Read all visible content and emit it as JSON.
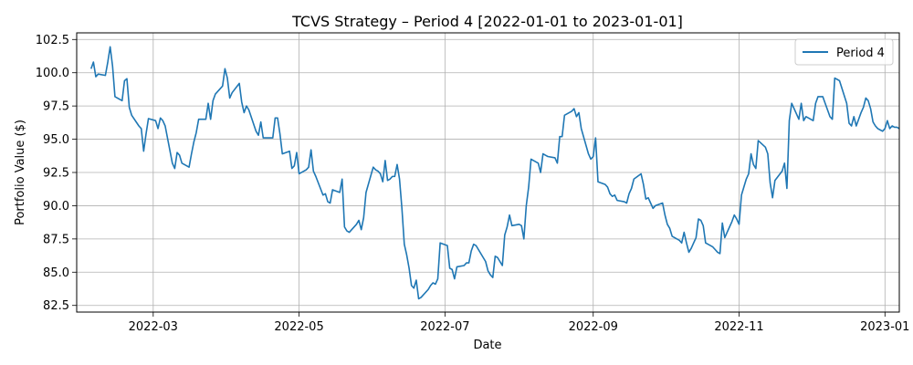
{
  "chart_data": {
    "type": "line",
    "title": "TCVS Strategy – Period 4 [2022-01-01 to 2023-01-01]",
    "xlabel": "Date",
    "ylabel": "Portfolio Value ($)",
    "xlim": [
      "2022-01-28",
      "2023-01-07"
    ],
    "ylim": [
      82.0,
      103.0
    ],
    "x_ticks": [
      "2022-03-01",
      "2022-05-01",
      "2022-07-01",
      "2022-09-01",
      "2022-11-01",
      "2023-01-01"
    ],
    "x_tick_labels": [
      "2022-03",
      "2022-05",
      "2022-07",
      "2022-09",
      "2022-11",
      "2023-01"
    ],
    "y_ticks": [
      82.5,
      85.0,
      87.5,
      90.0,
      92.5,
      95.0,
      97.5,
      100.0,
      102.5
    ],
    "y_tick_labels": [
      "82.5",
      "85.0",
      "87.5",
      "90.0",
      "92.5",
      "95.0",
      "97.5",
      "100.0",
      "102.5"
    ],
    "grid": true,
    "legend_position": "top-right",
    "line_color": "#1f77b4",
    "series": [
      {
        "name": "Period 4",
        "points": [
          [
            "2022-02-03",
            100.3
          ],
          [
            "2022-02-04",
            100.8
          ],
          [
            "2022-02-05",
            99.7
          ],
          [
            "2022-02-06",
            99.9
          ],
          [
            "2022-02-09",
            99.8
          ],
          [
            "2022-02-10",
            100.8
          ],
          [
            "2022-02-11",
            101.95
          ],
          [
            "2022-02-12",
            100.5
          ],
          [
            "2022-02-13",
            98.2
          ],
          [
            "2022-02-16",
            97.9
          ],
          [
            "2022-02-17",
            99.4
          ],
          [
            "2022-02-18",
            99.55
          ],
          [
            "2022-02-19",
            97.4
          ],
          [
            "2022-02-20",
            96.8
          ],
          [
            "2022-02-23",
            96.0
          ],
          [
            "2022-02-24",
            95.8
          ],
          [
            "2022-02-25",
            94.1
          ],
          [
            "2022-02-26",
            95.4
          ],
          [
            "2022-02-27",
            96.55
          ],
          [
            "2022-03-02",
            96.4
          ],
          [
            "2022-03-03",
            95.8
          ],
          [
            "2022-03-04",
            96.6
          ],
          [
            "2022-03-05",
            96.4
          ],
          [
            "2022-03-06",
            96.0
          ],
          [
            "2022-03-09",
            93.2
          ],
          [
            "2022-03-10",
            92.8
          ],
          [
            "2022-03-11",
            94.0
          ],
          [
            "2022-03-12",
            93.8
          ],
          [
            "2022-03-13",
            93.2
          ],
          [
            "2022-03-16",
            92.9
          ],
          [
            "2022-03-17",
            93.9
          ],
          [
            "2022-03-18",
            94.8
          ],
          [
            "2022-03-19",
            95.5
          ],
          [
            "2022-03-20",
            96.5
          ],
          [
            "2022-03-23",
            96.5
          ],
          [
            "2022-03-24",
            97.7
          ],
          [
            "2022-03-25",
            96.5
          ],
          [
            "2022-03-26",
            97.9
          ],
          [
            "2022-03-27",
            98.4
          ],
          [
            "2022-03-30",
            99.0
          ],
          [
            "2022-03-31",
            100.3
          ],
          [
            "2022-04-01",
            99.6
          ],
          [
            "2022-04-02",
            98.1
          ],
          [
            "2022-04-03",
            98.5
          ],
          [
            "2022-04-06",
            99.2
          ],
          [
            "2022-04-07",
            97.8
          ],
          [
            "2022-04-08",
            97.0
          ],
          [
            "2022-04-09",
            97.5
          ],
          [
            "2022-04-10",
            97.2
          ],
          [
            "2022-04-13",
            95.6
          ],
          [
            "2022-04-14",
            95.3
          ],
          [
            "2022-04-15",
            96.3
          ],
          [
            "2022-04-16",
            95.1
          ],
          [
            "2022-04-17",
            95.1
          ],
          [
            "2022-04-20",
            95.1
          ],
          [
            "2022-04-21",
            96.6
          ],
          [
            "2022-04-22",
            96.6
          ],
          [
            "2022-04-23",
            95.4
          ],
          [
            "2022-04-24",
            93.9
          ],
          [
            "2022-04-27",
            94.1
          ],
          [
            "2022-04-28",
            92.8
          ],
          [
            "2022-04-29",
            93.0
          ],
          [
            "2022-04-30",
            94.0
          ],
          [
            "2022-05-01",
            92.4
          ],
          [
            "2022-05-04",
            92.7
          ],
          [
            "2022-05-05",
            92.9
          ],
          [
            "2022-05-06",
            94.2
          ],
          [
            "2022-05-07",
            92.6
          ],
          [
            "2022-05-08",
            92.2
          ],
          [
            "2022-05-11",
            90.8
          ],
          [
            "2022-05-12",
            90.9
          ],
          [
            "2022-05-13",
            90.3
          ],
          [
            "2022-05-14",
            90.2
          ],
          [
            "2022-05-15",
            91.2
          ],
          [
            "2022-05-18",
            91.0
          ],
          [
            "2022-05-19",
            92.0
          ],
          [
            "2022-05-20",
            88.4
          ],
          [
            "2022-05-21",
            88.1
          ],
          [
            "2022-05-22",
            88.0
          ],
          [
            "2022-05-25",
            88.6
          ],
          [
            "2022-05-26",
            88.9
          ],
          [
            "2022-05-27",
            88.2
          ],
          [
            "2022-05-28",
            89.1
          ],
          [
            "2022-05-29",
            91.0
          ],
          [
            "2022-06-01",
            92.9
          ],
          [
            "2022-06-02",
            92.7
          ],
          [
            "2022-06-03",
            92.6
          ],
          [
            "2022-06-04",
            92.4
          ],
          [
            "2022-06-05",
            91.8
          ],
          [
            "2022-06-06",
            93.4
          ],
          [
            "2022-06-07",
            91.9
          ],
          [
            "2022-06-08",
            92.0
          ],
          [
            "2022-06-09",
            92.2
          ],
          [
            "2022-06-10",
            92.2
          ],
          [
            "2022-06-11",
            93.1
          ],
          [
            "2022-06-12",
            92.0
          ],
          [
            "2022-06-13",
            89.8
          ],
          [
            "2022-06-14",
            87.1
          ],
          [
            "2022-06-15",
            86.3
          ],
          [
            "2022-06-16",
            85.3
          ],
          [
            "2022-06-17",
            84.0
          ],
          [
            "2022-06-18",
            83.8
          ],
          [
            "2022-06-19",
            84.4
          ],
          [
            "2022-06-20",
            83.0
          ],
          [
            "2022-06-21",
            83.1
          ],
          [
            "2022-06-24",
            83.7
          ],
          [
            "2022-06-25",
            84.0
          ],
          [
            "2022-06-26",
            84.2
          ],
          [
            "2022-06-27",
            84.1
          ],
          [
            "2022-06-28",
            84.5
          ],
          [
            "2022-06-29",
            87.2
          ],
          [
            "2022-07-02",
            87.0
          ],
          [
            "2022-07-03",
            85.3
          ],
          [
            "2022-07-04",
            85.2
          ],
          [
            "2022-07-05",
            84.5
          ],
          [
            "2022-07-06",
            85.4
          ],
          [
            "2022-07-09",
            85.5
          ],
          [
            "2022-07-10",
            85.7
          ],
          [
            "2022-07-11",
            85.7
          ],
          [
            "2022-07-12",
            86.6
          ],
          [
            "2022-07-13",
            87.1
          ],
          [
            "2022-07-14",
            87.0
          ],
          [
            "2022-07-15",
            86.7
          ],
          [
            "2022-07-16",
            86.4
          ],
          [
            "2022-07-17",
            86.1
          ],
          [
            "2022-07-18",
            85.8
          ],
          [
            "2022-07-19",
            85.1
          ],
          [
            "2022-07-20",
            84.8
          ],
          [
            "2022-07-21",
            84.6
          ],
          [
            "2022-07-22",
            86.2
          ],
          [
            "2022-07-23",
            86.1
          ],
          [
            "2022-07-24",
            85.8
          ],
          [
            "2022-07-25",
            85.5
          ],
          [
            "2022-07-26",
            87.8
          ],
          [
            "2022-07-27",
            88.4
          ],
          [
            "2022-07-28",
            89.3
          ],
          [
            "2022-07-29",
            88.5
          ],
          [
            "2022-08-01",
            88.6
          ],
          [
            "2022-08-02",
            88.5
          ],
          [
            "2022-08-03",
            87.5
          ],
          [
            "2022-08-04",
            90.0
          ],
          [
            "2022-08-05",
            91.4
          ],
          [
            "2022-08-06",
            93.5
          ],
          [
            "2022-08-09",
            93.2
          ],
          [
            "2022-08-10",
            92.5
          ],
          [
            "2022-08-11",
            93.9
          ],
          [
            "2022-08-12",
            93.8
          ],
          [
            "2022-08-13",
            93.7
          ],
          [
            "2022-08-16",
            93.6
          ],
          [
            "2022-08-17",
            93.2
          ],
          [
            "2022-08-18",
            95.2
          ],
          [
            "2022-08-19",
            95.2
          ],
          [
            "2022-08-20",
            96.8
          ],
          [
            "2022-08-23",
            97.1
          ],
          [
            "2022-08-24",
            97.3
          ],
          [
            "2022-08-25",
            96.7
          ],
          [
            "2022-08-26",
            97.0
          ],
          [
            "2022-08-27",
            95.8
          ],
          [
            "2022-08-30",
            93.9
          ],
          [
            "2022-08-31",
            93.5
          ],
          [
            "2022-09-01",
            93.7
          ],
          [
            "2022-09-02",
            95.1
          ],
          [
            "2022-09-03",
            91.8
          ],
          [
            "2022-09-06",
            91.6
          ],
          [
            "2022-09-07",
            91.4
          ],
          [
            "2022-09-08",
            90.9
          ],
          [
            "2022-09-09",
            90.7
          ],
          [
            "2022-09-10",
            90.8
          ],
          [
            "2022-09-11",
            90.4
          ],
          [
            "2022-09-14",
            90.3
          ],
          [
            "2022-09-15",
            90.2
          ],
          [
            "2022-09-16",
            90.9
          ],
          [
            "2022-09-17",
            91.3
          ],
          [
            "2022-09-18",
            92.0
          ],
          [
            "2022-09-21",
            92.4
          ],
          [
            "2022-09-22",
            91.6
          ],
          [
            "2022-09-23",
            90.5
          ],
          [
            "2022-09-24",
            90.6
          ],
          [
            "2022-09-25",
            90.2
          ],
          [
            "2022-09-26",
            89.8
          ],
          [
            "2022-09-27",
            90.0
          ],
          [
            "2022-09-30",
            90.2
          ],
          [
            "2022-10-01",
            89.3
          ],
          [
            "2022-10-02",
            88.6
          ],
          [
            "2022-10-03",
            88.3
          ],
          [
            "2022-10-04",
            87.7
          ],
          [
            "2022-10-07",
            87.4
          ],
          [
            "2022-10-08",
            87.2
          ],
          [
            "2022-10-09",
            88.0
          ],
          [
            "2022-10-10",
            87.2
          ],
          [
            "2022-10-11",
            86.5
          ],
          [
            "2022-10-12",
            86.8
          ],
          [
            "2022-10-13",
            87.2
          ],
          [
            "2022-10-14",
            87.6
          ],
          [
            "2022-10-15",
            89.0
          ],
          [
            "2022-10-16",
            88.9
          ],
          [
            "2022-10-17",
            88.5
          ],
          [
            "2022-10-18",
            87.2
          ],
          [
            "2022-10-21",
            86.9
          ],
          [
            "2022-10-22",
            86.7
          ],
          [
            "2022-10-23",
            86.5
          ],
          [
            "2022-10-24",
            86.4
          ],
          [
            "2022-10-25",
            88.7
          ],
          [
            "2022-10-26",
            87.6
          ],
          [
            "2022-10-27",
            88.0
          ],
          [
            "2022-10-28",
            88.4
          ],
          [
            "2022-10-29",
            88.8
          ],
          [
            "2022-10-30",
            89.3
          ],
          [
            "2022-10-31",
            89.0
          ],
          [
            "2022-11-01",
            88.6
          ],
          [
            "2022-11-02",
            90.8
          ],
          [
            "2022-11-03",
            91.4
          ],
          [
            "2022-11-04",
            92.0
          ],
          [
            "2022-11-05",
            92.4
          ],
          [
            "2022-11-06",
            93.9
          ],
          [
            "2022-11-07",
            93.1
          ],
          [
            "2022-11-08",
            92.8
          ],
          [
            "2022-11-09",
            94.9
          ],
          [
            "2022-11-12",
            94.4
          ],
          [
            "2022-11-13",
            93.9
          ],
          [
            "2022-11-14",
            91.7
          ],
          [
            "2022-11-15",
            90.6
          ],
          [
            "2022-11-16",
            91.9
          ],
          [
            "2022-11-19",
            92.6
          ],
          [
            "2022-11-20",
            93.2
          ],
          [
            "2022-11-21",
            91.3
          ],
          [
            "2022-11-22",
            96.4
          ],
          [
            "2022-11-23",
            97.7
          ],
          [
            "2022-11-26",
            96.5
          ],
          [
            "2022-11-27",
            97.7
          ],
          [
            "2022-11-28",
            96.4
          ],
          [
            "2022-11-29",
            96.7
          ],
          [
            "2022-12-02",
            96.4
          ],
          [
            "2022-12-03",
            97.7
          ],
          [
            "2022-12-04",
            98.2
          ],
          [
            "2022-12-05",
            98.2
          ],
          [
            "2022-12-06",
            98.2
          ],
          [
            "2022-12-07",
            97.7
          ],
          [
            "2022-12-08",
            97.2
          ],
          [
            "2022-12-09",
            96.7
          ],
          [
            "2022-12-10",
            96.5
          ],
          [
            "2022-12-11",
            99.6
          ],
          [
            "2022-12-12",
            99.5
          ],
          [
            "2022-12-13",
            99.4
          ],
          [
            "2022-12-16",
            97.7
          ],
          [
            "2022-12-17",
            96.2
          ],
          [
            "2022-12-18",
            96.0
          ],
          [
            "2022-12-19",
            96.7
          ],
          [
            "2022-12-20",
            96.0
          ],
          [
            "2022-12-21",
            96.5
          ],
          [
            "2022-12-22",
            97.0
          ],
          [
            "2022-12-23",
            97.4
          ],
          [
            "2022-12-24",
            98.1
          ],
          [
            "2022-12-25",
            97.9
          ],
          [
            "2022-12-26",
            97.3
          ],
          [
            "2022-12-27",
            96.3
          ],
          [
            "2022-12-28",
            96.0
          ],
          [
            "2022-12-29",
            95.8
          ],
          [
            "2022-12-30",
            95.7
          ],
          [
            "2022-12-31",
            95.6
          ],
          [
            "2023-01-01",
            95.8
          ],
          [
            "2023-01-02",
            96.4
          ],
          [
            "2023-01-03",
            95.8
          ],
          [
            "2023-01-04",
            96.0
          ],
          [
            "2023-01-05",
            95.9
          ],
          [
            "2023-01-06",
            95.9
          ],
          [
            "2023-01-07",
            95.8
          ]
        ]
      }
    ]
  }
}
